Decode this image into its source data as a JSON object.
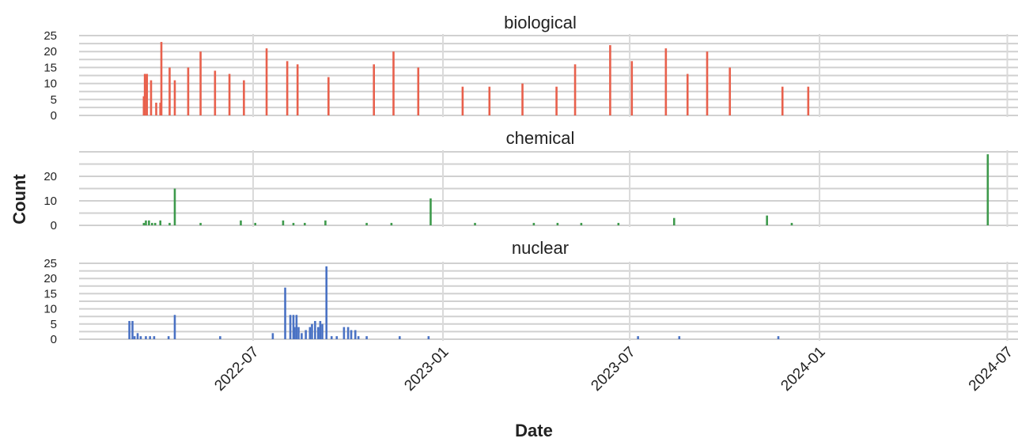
{
  "ylabel": "Count",
  "xlabel": "Date",
  "x_ticks": [
    "2022-07",
    "2023-01",
    "2023-07",
    "2024-01",
    "2024-07"
  ],
  "chart_data": [
    {
      "type": "bar",
      "title": "biological",
      "color": "#e8604c",
      "ylim": [
        0,
        25
      ],
      "yticks": [
        0,
        5,
        10,
        15,
        20,
        25
      ],
      "x": [
        "2022-03-17",
        "2022-03-18",
        "2022-03-20",
        "2022-03-24",
        "2022-03-29",
        "2022-04-02",
        "2022-04-03",
        "2022-04-11",
        "2022-04-16",
        "2022-04-29",
        "2022-05-11",
        "2022-05-25",
        "2022-06-08",
        "2022-06-22",
        "2022-07-14",
        "2022-08-03",
        "2022-08-13",
        "2022-09-12",
        "2022-10-26",
        "2022-11-14",
        "2022-12-08",
        "2023-01-20",
        "2023-02-15",
        "2023-03-19",
        "2023-04-21",
        "2023-05-09",
        "2023-06-12",
        "2023-07-03",
        "2023-08-05",
        "2023-08-26",
        "2023-09-14",
        "2023-10-06",
        "2023-11-26",
        "2023-12-21"
      ],
      "values": [
        6,
        13,
        13,
        11,
        4,
        4,
        23,
        15,
        11,
        15,
        20,
        14,
        13,
        11,
        21,
        17,
        16,
        12,
        16,
        20,
        15,
        9,
        9,
        10,
        9,
        16,
        22,
        17,
        21,
        13,
        20,
        15,
        9,
        9
      ]
    },
    {
      "type": "bar",
      "title": "chemical",
      "color": "#3e9a4c",
      "ylim": [
        0,
        30
      ],
      "yticks": [
        0,
        10,
        20
      ],
      "x": [
        "2022-03-17",
        "2022-03-19",
        "2022-03-22",
        "2022-03-25",
        "2022-03-28",
        "2022-04-02",
        "2022-04-11",
        "2022-04-16",
        "2022-05-11",
        "2022-06-19",
        "2022-07-03",
        "2022-07-30",
        "2022-08-09",
        "2022-08-20",
        "2022-09-09",
        "2022-10-19",
        "2022-11-12",
        "2022-12-20",
        "2023-02-01",
        "2023-03-30",
        "2023-04-22",
        "2023-05-15",
        "2023-06-20",
        "2023-08-13",
        "2023-11-11",
        "2023-12-05",
        "2024-06-12"
      ],
      "values": [
        1,
        2,
        2,
        1,
        1,
        2,
        1,
        15,
        1,
        2,
        1,
        2,
        1,
        1,
        2,
        1,
        1,
        11,
        1,
        1,
        1,
        1,
        1,
        3,
        4,
        1,
        29
      ]
    },
    {
      "type": "bar",
      "title": "nuclear",
      "color": "#4a72c4",
      "ylim": [
        0,
        25
      ],
      "yticks": [
        0,
        5,
        10,
        15,
        20,
        25
      ],
      "x": [
        "2022-03-03",
        "2022-03-06",
        "2022-03-08",
        "2022-03-11",
        "2022-03-14",
        "2022-03-19",
        "2022-03-23",
        "2022-03-27",
        "2022-04-10",
        "2022-04-16",
        "2022-05-30",
        "2022-07-20",
        "2022-08-01",
        "2022-08-06",
        "2022-08-09",
        "2022-08-10",
        "2022-08-12",
        "2022-08-14",
        "2022-08-17",
        "2022-08-21",
        "2022-08-25",
        "2022-08-27",
        "2022-08-30",
        "2022-09-02",
        "2022-09-04",
        "2022-09-06",
        "2022-09-10",
        "2022-09-15",
        "2022-09-20",
        "2022-09-27",
        "2022-10-01",
        "2022-10-04",
        "2022-10-08",
        "2022-10-11",
        "2022-10-19",
        "2022-11-20",
        "2022-12-18",
        "2023-07-09",
        "2023-08-18",
        "2023-11-22"
      ],
      "values": [
        6,
        6,
        1,
        2,
        1,
        1,
        1,
        1,
        1,
        8,
        1,
        2,
        17,
        8,
        8,
        4,
        8,
        4,
        2,
        3,
        4,
        5,
        6,
        4,
        6,
        5,
        24,
        1,
        1,
        4,
        4,
        3,
        3,
        1,
        1,
        1,
        1,
        1,
        1,
        1
      ]
    }
  ]
}
